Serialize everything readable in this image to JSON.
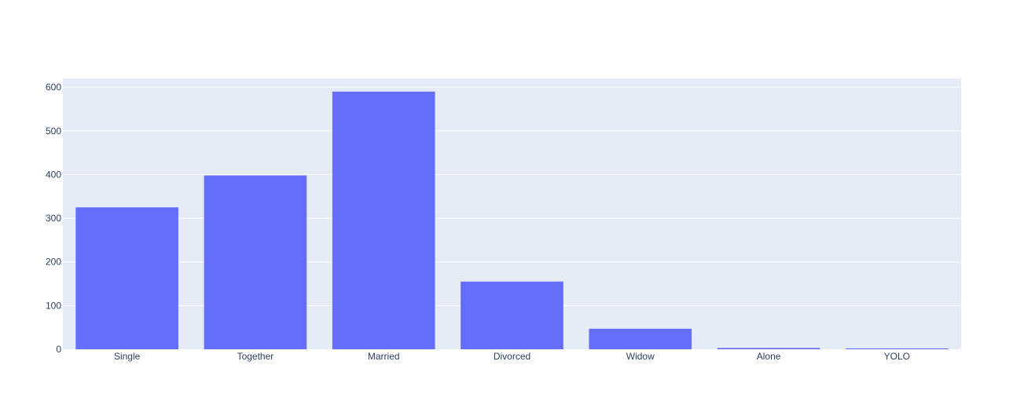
{
  "chart_data": {
    "type": "bar",
    "title": "",
    "xlabel": "",
    "ylabel": "",
    "categories": [
      "Single",
      "Together",
      "Married",
      "Divorced",
      "Widow",
      "Alone",
      "YOLO"
    ],
    "values": [
      325,
      398,
      590,
      155,
      47,
      3,
      2
    ],
    "ylim": [
      0,
      620
    ],
    "yticks": [
      0,
      100,
      200,
      300,
      400,
      500,
      600
    ],
    "grid": true,
    "legend": "none",
    "colors": {
      "bar": "#636efa",
      "plot_background": "#e5ecf6",
      "gridline": "#ffffff",
      "tick_label": "#2a3f5f"
    }
  }
}
